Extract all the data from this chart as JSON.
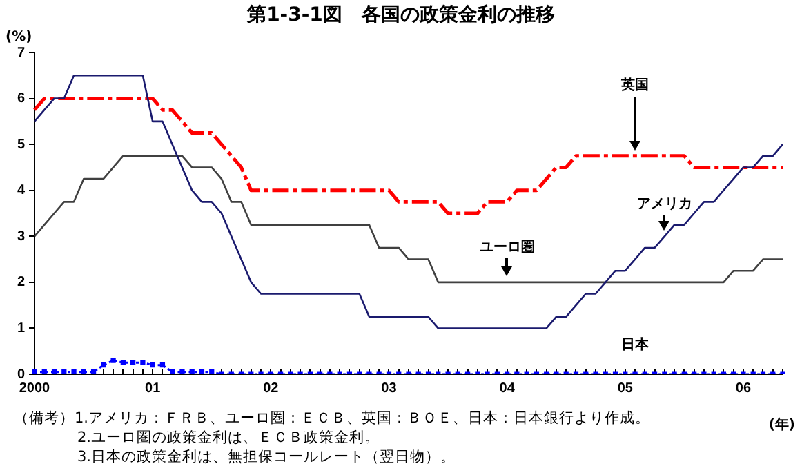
{
  "chart_data": {
    "type": "line",
    "title": "第1-3-1図　各国の政策金利の推移",
    "ylabel": "(%)",
    "xlabel": "(年)",
    "categories": [
      "2000",
      null,
      null,
      null,
      null,
      null,
      null,
      null,
      null,
      null,
      null,
      null,
      "01",
      null,
      null,
      null,
      null,
      null,
      null,
      null,
      null,
      null,
      null,
      null,
      "02",
      null,
      null,
      null,
      null,
      null,
      null,
      null,
      null,
      null,
      null,
      null,
      "03",
      null,
      null,
      null,
      null,
      null,
      null,
      null,
      null,
      null,
      null,
      null,
      "04",
      null,
      null,
      null,
      null,
      null,
      null,
      null,
      null,
      null,
      null,
      null,
      "05",
      null,
      null,
      null,
      null,
      null,
      null,
      null,
      null,
      null,
      null,
      null,
      "06",
      null,
      null,
      null,
      null
    ],
    "series": [
      {
        "name": "アメリカ",
        "color": "#1a1a6e",
        "line_style": "solid",
        "values": [
          5.5,
          5.75,
          6.0,
          6.0,
          6.5,
          6.5,
          6.5,
          6.5,
          6.5,
          6.5,
          6.5,
          6.5,
          5.5,
          5.5,
          5.0,
          4.5,
          4.0,
          3.75,
          3.75,
          3.5,
          3.0,
          2.5,
          2.0,
          1.75,
          1.75,
          1.75,
          1.75,
          1.75,
          1.75,
          1.75,
          1.75,
          1.75,
          1.75,
          1.75,
          1.25,
          1.25,
          1.25,
          1.25,
          1.25,
          1.25,
          1.25,
          1.0,
          1.0,
          1.0,
          1.0,
          1.0,
          1.0,
          1.0,
          1.0,
          1.0,
          1.0,
          1.0,
          1.0,
          1.25,
          1.25,
          1.5,
          1.75,
          1.75,
          2.0,
          2.25,
          2.25,
          2.5,
          2.75,
          2.75,
          3.0,
          3.25,
          3.25,
          3.5,
          3.75,
          3.75,
          4.0,
          4.25,
          4.5,
          4.5,
          4.75,
          4.75,
          5.0
        ]
      },
      {
        "name": "ユーロ圏",
        "color": "#404040",
        "line_style": "solid",
        "values": [
          3.0,
          3.25,
          3.5,
          3.75,
          3.75,
          4.25,
          4.25,
          4.25,
          4.5,
          4.75,
          4.75,
          4.75,
          4.75,
          4.75,
          4.75,
          4.75,
          4.5,
          4.5,
          4.5,
          4.25,
          3.75,
          3.75,
          3.25,
          3.25,
          3.25,
          3.25,
          3.25,
          3.25,
          3.25,
          3.25,
          3.25,
          3.25,
          3.25,
          3.25,
          3.25,
          2.75,
          2.75,
          2.75,
          2.5,
          2.5,
          2.5,
          2.0,
          2.0,
          2.0,
          2.0,
          2.0,
          2.0,
          2.0,
          2.0,
          2.0,
          2.0,
          2.0,
          2.0,
          2.0,
          2.0,
          2.0,
          2.0,
          2.0,
          2.0,
          2.0,
          2.0,
          2.0,
          2.0,
          2.0,
          2.0,
          2.0,
          2.0,
          2.0,
          2.0,
          2.0,
          2.0,
          2.25,
          2.25,
          2.25,
          2.5,
          2.5,
          2.5
        ]
      },
      {
        "name": "英国",
        "color": "#ff0000",
        "line_style": "dashed",
        "values": [
          5.75,
          6.0,
          6.0,
          6.0,
          6.0,
          6.0,
          6.0,
          6.0,
          6.0,
          6.0,
          6.0,
          6.0,
          6.0,
          5.75,
          5.75,
          5.5,
          5.25,
          5.25,
          5.25,
          5.0,
          4.75,
          4.5,
          4.0,
          4.0,
          4.0,
          4.0,
          4.0,
          4.0,
          4.0,
          4.0,
          4.0,
          4.0,
          4.0,
          4.0,
          4.0,
          4.0,
          4.0,
          3.75,
          3.75,
          3.75,
          3.75,
          3.75,
          3.5,
          3.5,
          3.5,
          3.5,
          3.75,
          3.75,
          3.75,
          4.0,
          4.0,
          4.0,
          4.25,
          4.5,
          4.5,
          4.75,
          4.75,
          4.75,
          4.75,
          4.75,
          4.75,
          4.75,
          4.75,
          4.75,
          4.75,
          4.75,
          4.75,
          4.5,
          4.5,
          4.5,
          4.5,
          4.5,
          4.5,
          4.5,
          4.5,
          4.5,
          4.5
        ]
      },
      {
        "name": "日本",
        "color": "#0000ff",
        "line_style": "dotted",
        "marker": "square",
        "values": [
          0.05,
          0.05,
          0.05,
          0.05,
          0.05,
          0.05,
          0.05,
          0.2,
          0.3,
          0.25,
          0.25,
          0.25,
          0.2,
          0.2,
          0.05,
          0.05,
          0.05,
          0.05,
          0.05,
          0,
          0,
          0,
          0,
          0,
          0,
          0,
          0,
          0,
          0,
          0,
          0,
          0,
          0,
          0,
          0,
          0,
          0,
          0,
          0,
          0,
          0,
          0,
          0,
          0,
          0,
          0,
          0,
          0,
          0,
          0,
          0,
          0,
          0,
          0,
          0,
          0,
          0,
          0,
          0,
          0,
          0,
          0,
          0,
          0,
          0,
          0,
          0,
          0,
          0,
          0,
          0,
          0,
          0,
          0,
          0,
          0,
          0
        ]
      }
    ],
    "ylim": [
      0,
      7
    ],
    "yticks": [
      0,
      1,
      2,
      3,
      4,
      5,
      6,
      7
    ],
    "annotations": [
      "（備考）1.アメリカ：ＦＲＢ、ユーロ圏：ＥＣＢ、英国：ＢＯＥ、日本：日本銀行より作成。",
      "2.ユーロ圏の政策金利は、ＥＣＢ政策金利。",
      "3.日本の政策金利は、無担保コールレート（翌日物）。"
    ]
  }
}
